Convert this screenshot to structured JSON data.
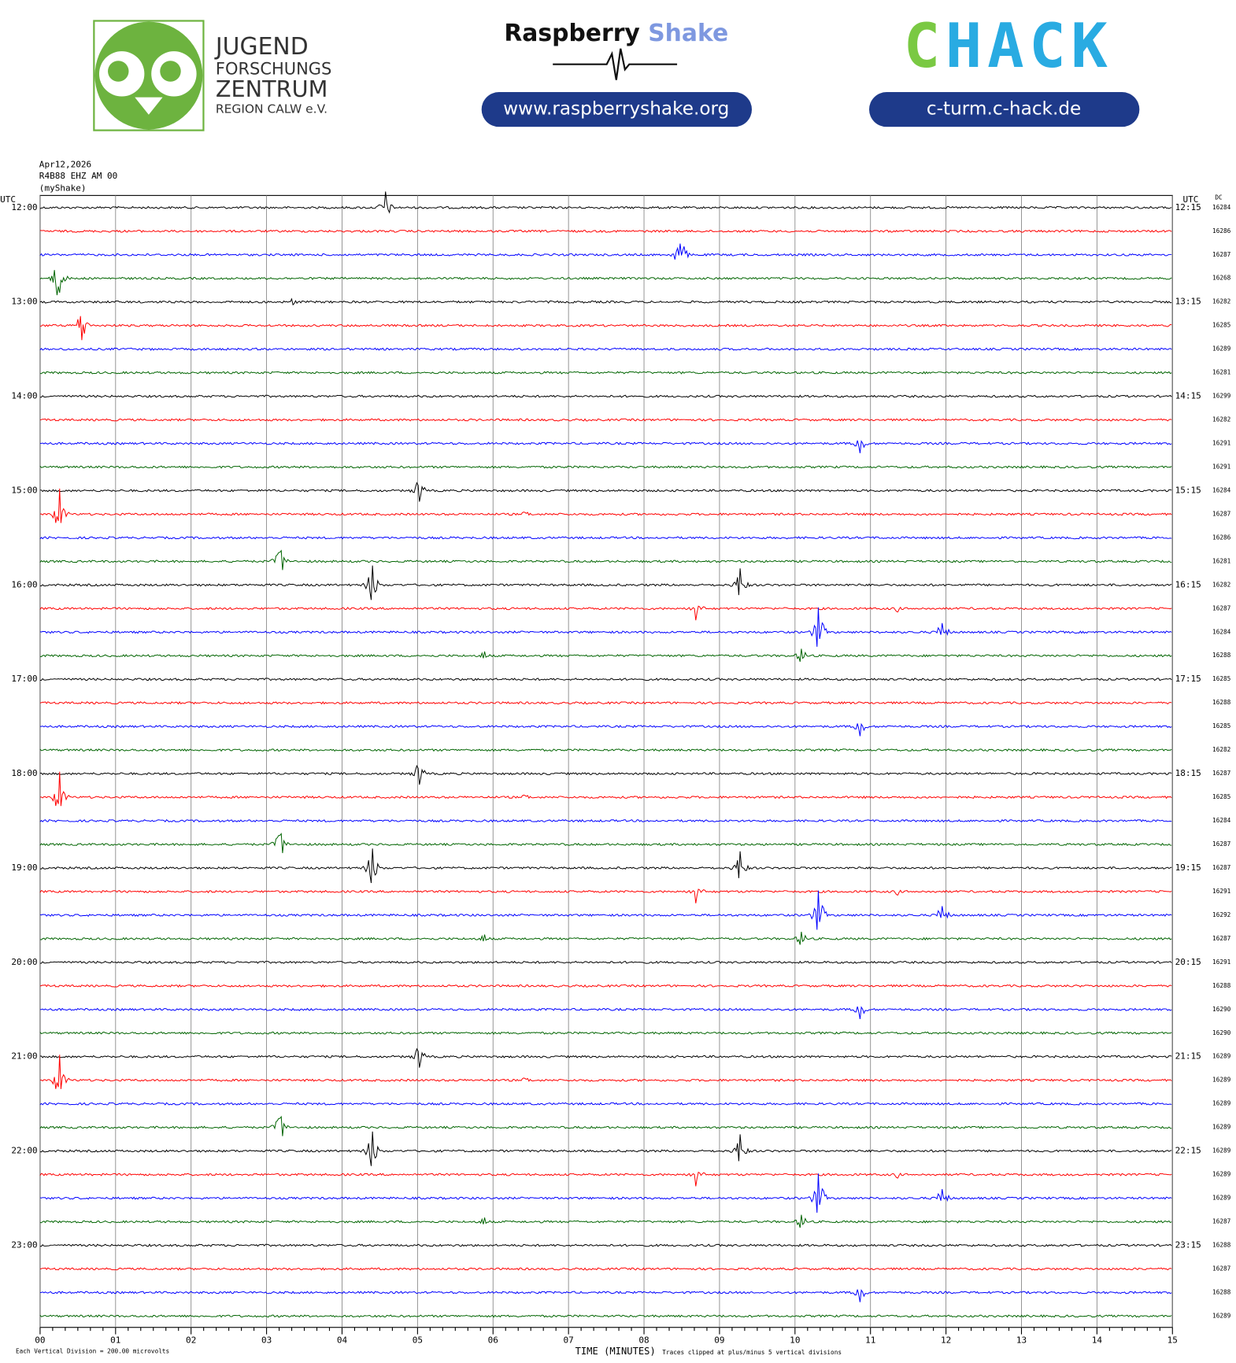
{
  "header": {
    "org_lines": [
      "JUGEND",
      "FORSCHUNGS",
      "ZENTRUM",
      "REGION CALW e.V."
    ],
    "brand_first": "Raspberry",
    "brand_second": "Shake",
    "brand_url": "www.raspberryshake.org",
    "chack_first": "C",
    "chack_rest": "HACK",
    "chack_url": "c-turm.c-hack.de"
  },
  "plot": {
    "meta": [
      "Apr12,2026",
      "R4B88 EHZ AM 00",
      "(myShake)"
    ],
    "left_unit": "UTC",
    "right_unit": "UTC",
    "dc_label": "DC",
    "left_labels": [
      "12:00",
      "13:00",
      "14:00",
      "15:00",
      "16:00",
      "17:00",
      "18:00",
      "19:00",
      "20:00",
      "21:00",
      "22:00",
      "23:00"
    ],
    "right_labels": [
      "12:15",
      "13:15",
      "14:15",
      "15:15",
      "16:15",
      "17:15",
      "18:15",
      "19:15",
      "20:15",
      "21:15",
      "22:15",
      "23:15"
    ],
    "dc_values": [
      "16284",
      "16286",
      "16287",
      "16268",
      "16282",
      "16285",
      "16289",
      "16281",
      "16299",
      "16282",
      "16291",
      "16291",
      "16284",
      "16287",
      "16286",
      "16281",
      "16282",
      "16287",
      "16284",
      "16288",
      "16285",
      "16288",
      "16285",
      "16282",
      "16287",
      "16285",
      "16284",
      "16287",
      "16287",
      "16291",
      "16292",
      "16287",
      "16291",
      "16288",
      "16290",
      "16290",
      "16289",
      "16289",
      "16289",
      "16289",
      "16289",
      "16289",
      "16289",
      "16287",
      "16288",
      "16287",
      "16288",
      "16289"
    ],
    "x_ticks": [
      "00",
      "01",
      "02",
      "03",
      "04",
      "05",
      "06",
      "07",
      "08",
      "09",
      "10",
      "11",
      "12",
      "13",
      "14",
      "15"
    ],
    "x_title": "TIME (MINUTES)",
    "scale_note": "Each Vertical Division =  200.00 microvolts",
    "clip_note": "Traces clipped at plus/minus 5 vertical divisions",
    "trace_colors": [
      "#000000",
      "#ff0000",
      "#0000ff",
      "#006400"
    ]
  }
}
